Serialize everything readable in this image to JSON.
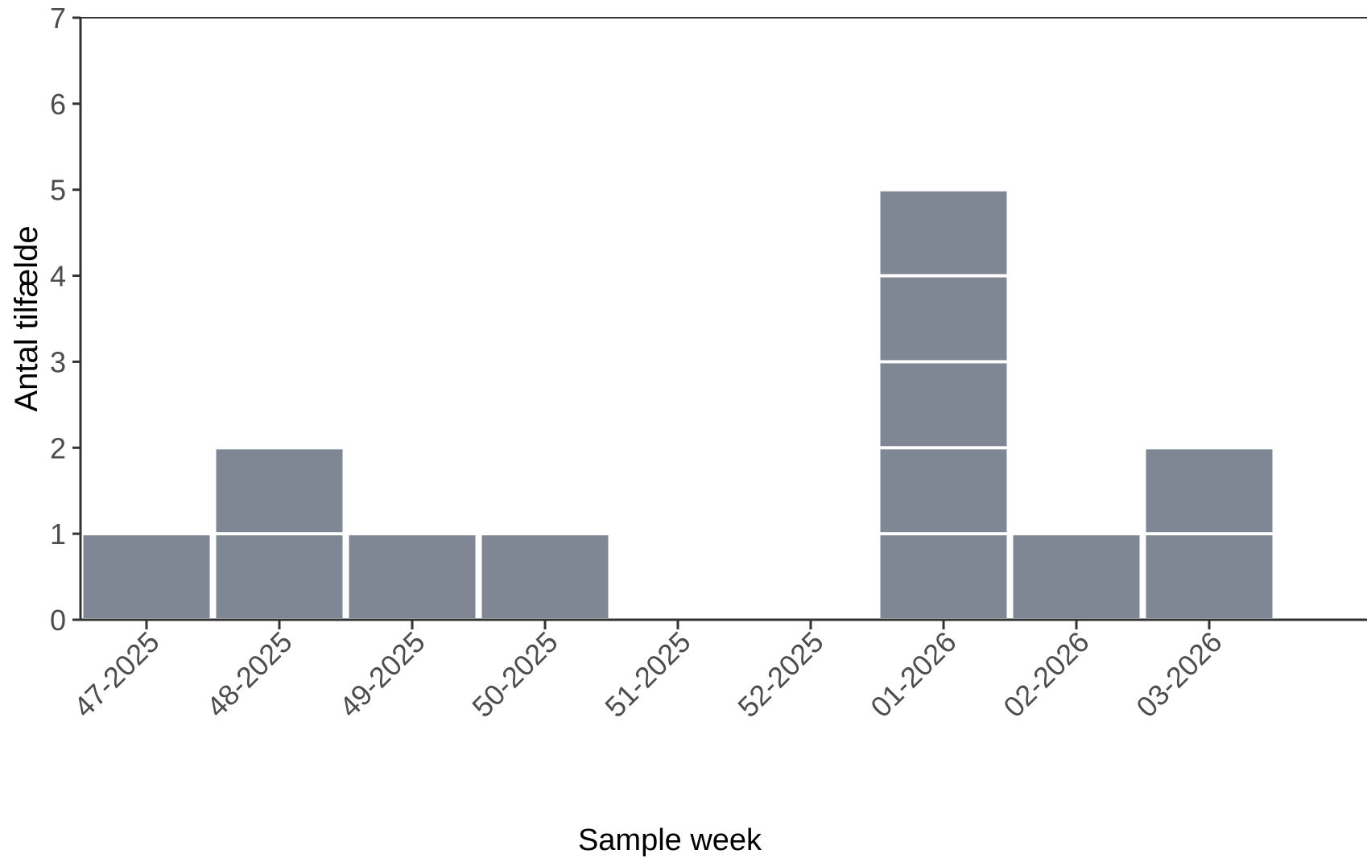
{
  "chart_data": {
    "type": "bar",
    "stacked_units": true,
    "categories": [
      "47-2025",
      "48-2025",
      "49-2025",
      "50-2025",
      "51-2025",
      "52-2025",
      "01-2026",
      "02-2026",
      "03-2026"
    ],
    "values": [
      1,
      2,
      1,
      1,
      0,
      0,
      5,
      1,
      2
    ],
    "xlabel": "Sample week",
    "ylabel": "Antal tilfælde",
    "ylim": [
      0,
      7
    ],
    "yticks": [
      0,
      1,
      2,
      3,
      4,
      5,
      6,
      7
    ],
    "grid": false,
    "bar_color": "#7f8795"
  }
}
